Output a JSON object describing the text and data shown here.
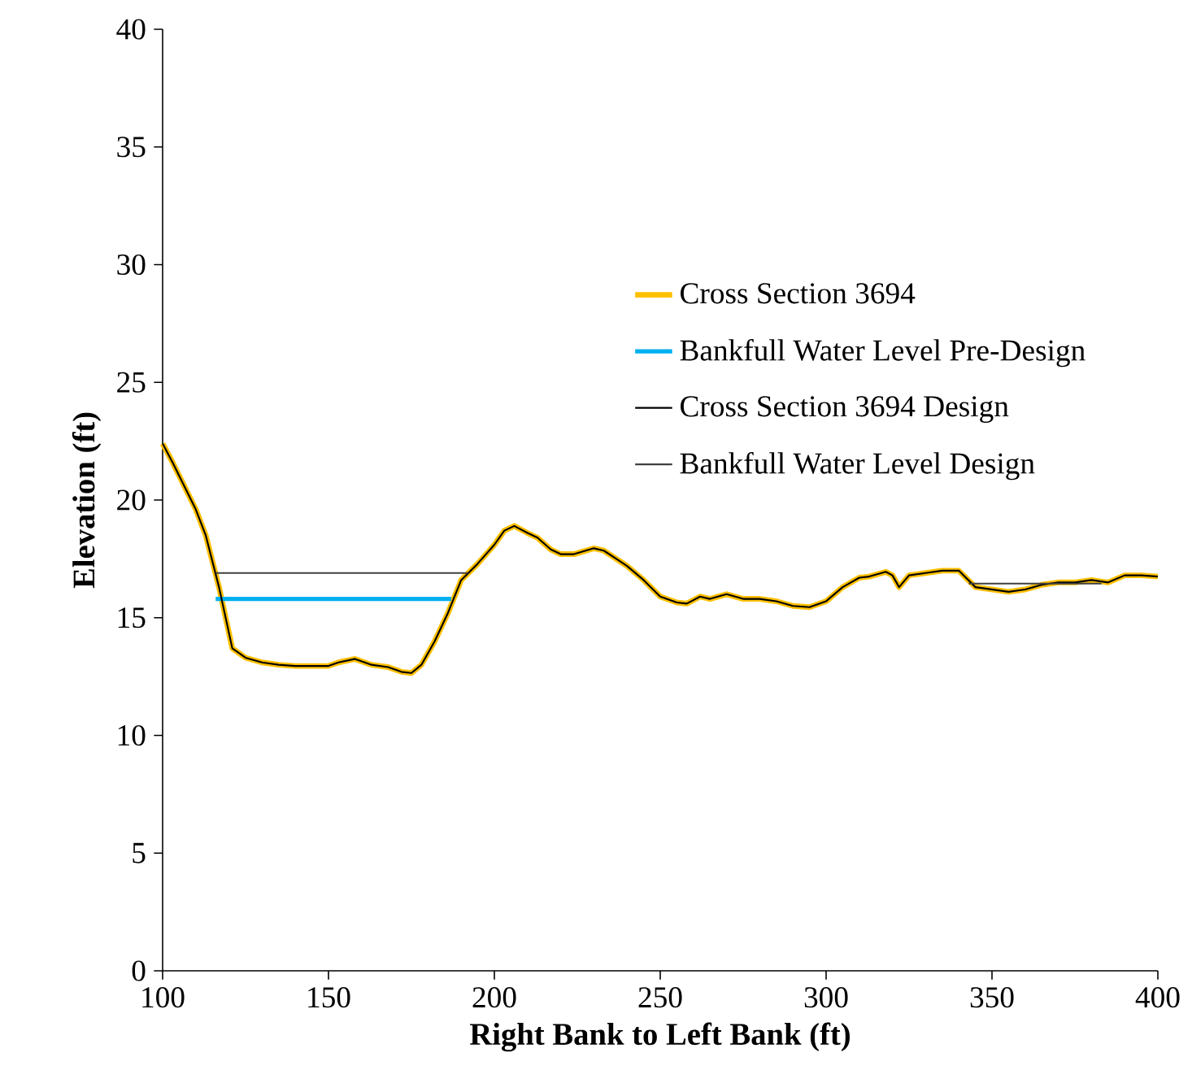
{
  "chart_data": {
    "type": "line",
    "xlabel": "Right Bank to Left Bank (ft)",
    "ylabel": "Elevation (ft)",
    "xlim": [
      100,
      400
    ],
    "xticks": [
      100,
      150,
      200,
      250,
      300,
      350,
      400
    ],
    "ylim": [
      0,
      40
    ],
    "yticks": [
      0,
      5,
      10,
      15,
      20,
      25,
      30,
      35,
      40
    ],
    "grid": false,
    "legend": "right",
    "marker": "none",
    "series": [
      {
        "name": "Cross Section 3694",
        "color": "#ffc000",
        "x": [
          100,
          103,
          110,
          113,
          117,
          121,
          125,
          130,
          135,
          140,
          150,
          153,
          158,
          163,
          168,
          172,
          175,
          178,
          182,
          186,
          190,
          195,
          200,
          203,
          206,
          210,
          213,
          217,
          220,
          224,
          230,
          233,
          240,
          245,
          250,
          255,
          258,
          262,
          265,
          270,
          275,
          280,
          285,
          290,
          295,
          300,
          305,
          310,
          313,
          318,
          320,
          322,
          325,
          330,
          335,
          340,
          345,
          350,
          355,
          360,
          365,
          370,
          375,
          380,
          385,
          390,
          395,
          400
        ],
        "values": [
          22.4,
          21.6,
          19.6,
          18.5,
          16.3,
          13.7,
          13.3,
          13.1,
          13.0,
          12.95,
          12.95,
          13.1,
          13.25,
          13.0,
          12.9,
          12.7,
          12.65,
          13.0,
          14.0,
          15.2,
          16.6,
          17.3,
          18.1,
          18.7,
          18.9,
          18.6,
          18.4,
          17.9,
          17.7,
          17.7,
          17.95,
          17.85,
          17.2,
          16.6,
          15.9,
          15.65,
          15.6,
          15.9,
          15.8,
          16.0,
          15.8,
          15.8,
          15.7,
          15.5,
          15.45,
          15.7,
          16.3,
          16.7,
          16.75,
          16.95,
          16.8,
          16.3,
          16.8,
          16.9,
          17.0,
          17.0,
          16.3,
          16.2,
          16.1,
          16.2,
          16.4,
          16.5,
          16.5,
          16.6,
          16.5,
          16.8,
          16.8,
          16.75
        ]
      },
      {
        "name": "Bankfull Water Level Pre-Design",
        "color": "#00b0f0",
        "x": [
          116,
          187
        ],
        "values": [
          15.8,
          15.8
        ]
      },
      {
        "name": "Cross Section 3694 Design",
        "color": "#000000",
        "x": [
          100,
          103,
          110,
          113,
          117,
          121,
          125,
          130,
          135,
          140,
          150,
          153,
          158,
          163,
          168,
          172,
          175,
          178,
          182,
          186,
          190,
          195,
          200,
          203,
          206,
          210,
          213,
          217,
          220,
          224,
          230,
          233,
          240,
          245,
          250,
          255,
          258,
          262,
          265,
          270,
          275,
          280,
          285,
          290,
          295,
          300,
          305,
          310,
          313,
          318,
          320,
          322,
          325,
          330,
          335,
          340,
          345,
          350,
          355,
          360,
          365,
          370,
          375,
          380,
          385,
          390,
          395,
          400
        ],
        "values": [
          22.4,
          21.6,
          19.6,
          18.5,
          16.3,
          13.7,
          13.3,
          13.1,
          13.0,
          12.95,
          12.95,
          13.1,
          13.25,
          13.0,
          12.9,
          12.7,
          12.65,
          13.0,
          14.0,
          15.2,
          16.6,
          17.3,
          18.1,
          18.7,
          18.9,
          18.6,
          18.4,
          17.9,
          17.7,
          17.7,
          17.95,
          17.85,
          17.2,
          16.6,
          15.9,
          15.65,
          15.6,
          15.9,
          15.8,
          16.0,
          15.8,
          15.8,
          15.7,
          15.5,
          15.45,
          15.7,
          16.3,
          16.7,
          16.75,
          16.95,
          16.8,
          16.3,
          16.8,
          16.9,
          17.0,
          17.0,
          16.3,
          16.2,
          16.1,
          16.2,
          16.4,
          16.5,
          16.5,
          16.6,
          16.5,
          16.8,
          16.8,
          16.75
        ]
      },
      {
        "name": "Bankfull Water Level Design",
        "color": "#404040",
        "x": [
          116,
          192,
          260,
          343,
          383
        ],
        "values": [
          16.9,
          16.9,
          null,
          16.45,
          16.45
        ]
      }
    ]
  }
}
